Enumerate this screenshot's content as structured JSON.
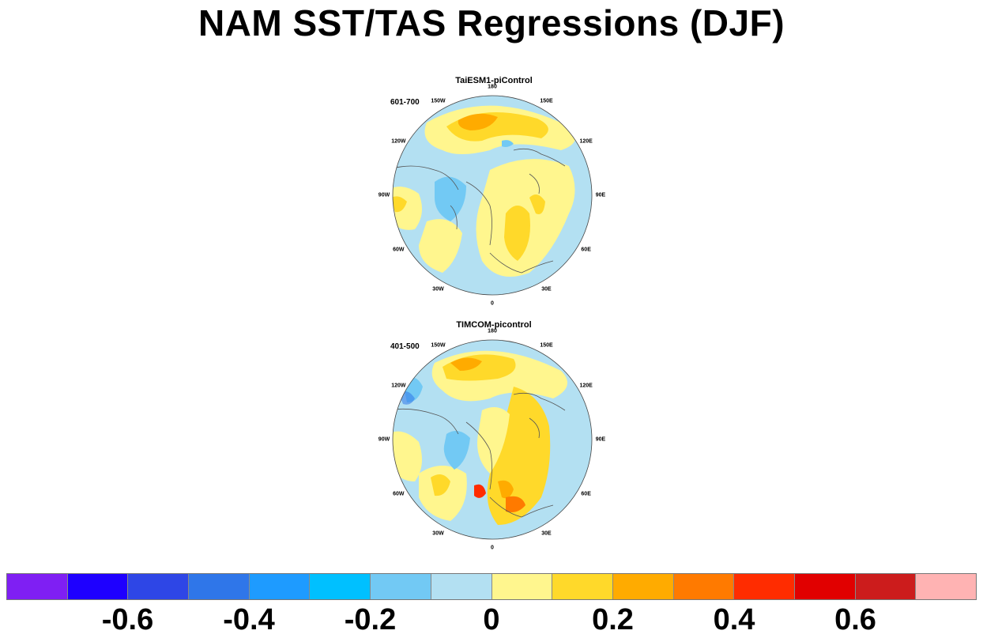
{
  "title": "NAM SST/TAS Regressions (DJF)",
  "panels": [
    {
      "title": "TaiESM1-piControl",
      "period": "601-700"
    },
    {
      "title": "TIMCOM-picontrol",
      "period": "401-500"
    }
  ],
  "longitude_labels": [
    "180",
    "150E",
    "120E",
    "90E",
    "60E",
    "30E",
    "0",
    "30W",
    "60W",
    "90W",
    "120W",
    "150W"
  ],
  "colorbar": {
    "colors": [
      "#7f1ff3",
      "#1e00ff",
      "#2e46e6",
      "#2f76e9",
      "#1e9bff",
      "#00c0ff",
      "#72c9f4",
      "#b3e0f2",
      "#fff68e",
      "#ffd92a",
      "#ffab00",
      "#ff7a00",
      "#ff2c00",
      "#e10000",
      "#cc1c1c",
      "#ffb3b3"
    ],
    "labels": [
      "-0.6",
      "-0.4",
      "-0.2",
      "0",
      "0.2",
      "0.4",
      "0.6"
    ]
  }
}
